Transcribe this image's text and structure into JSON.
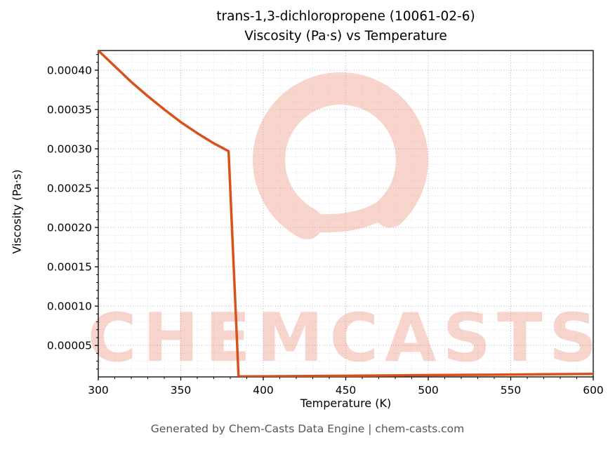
{
  "title": {
    "line1": "trans-1,3-dichloropropene (10061-02-6)",
    "line2": "Viscosity (Pa·s) vs Temperature"
  },
  "footer": "Generated by Chem-Casts Data Engine | chem-casts.com",
  "watermark_text": "CHEMCASTS",
  "colors": {
    "line": "#d9521c",
    "major_grid": "#b5b5b5",
    "minor_grid": "#e2e2e2",
    "axis": "#000000",
    "watermark": "#ef9d87",
    "watermark_text": "#e8765e",
    "footer_text": "#555555"
  },
  "chart_data": {
    "type": "line",
    "title": "trans-1,3-dichloropropene (10061-02-6) Viscosity (Pa·s) vs Temperature",
    "xlabel": "Temperature (K)",
    "ylabel": "Viscosity (Pa·s)",
    "xlim": [
      300,
      600
    ],
    "ylim": [
      1e-05,
      0.000425
    ],
    "x_ticks": [
      300,
      350,
      400,
      450,
      500,
      550,
      600
    ],
    "y_ticks": [
      5e-05,
      0.0001,
      0.00015,
      0.0002,
      0.00025,
      0.0003,
      0.00035,
      0.0004
    ],
    "x_minor_step": 10,
    "y_minor_step": 1e-05,
    "grid": true,
    "legend": false,
    "series": [
      {
        "name": "Viscosity",
        "x": [
          300,
          310,
          320,
          330,
          340,
          350,
          360,
          370,
          379,
          385,
          390,
          420,
          450,
          480,
          510,
          540,
          570,
          600
        ],
        "y": [
          0.000425,
          0.000405,
          0.000385,
          0.000367,
          0.00035,
          0.000334,
          0.00032,
          0.000307,
          0.000297,
          1.05e-05,
          1.06e-05,
          1.1e-05,
          1.14e-05,
          1.19e-05,
          1.24e-05,
          1.28e-05,
          1.33e-05,
          1.38e-05
        ]
      }
    ]
  }
}
